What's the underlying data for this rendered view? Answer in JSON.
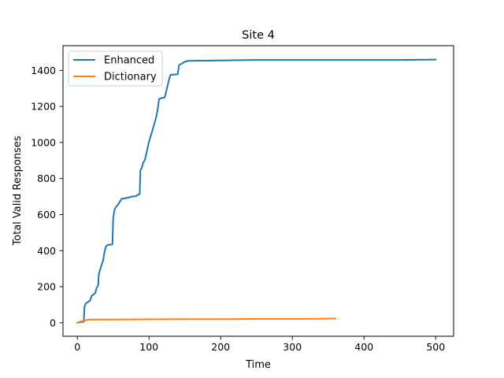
{
  "chart_data": {
    "type": "line",
    "title": "Site 4",
    "xlabel": "Time",
    "ylabel": "Total Valid Responses",
    "xlim": [
      -20,
      525
    ],
    "ylim": [
      -75,
      1537
    ],
    "xticks": [
      0,
      100,
      200,
      300,
      400,
      500
    ],
    "yticks": [
      0,
      200,
      400,
      600,
      800,
      1000,
      1200,
      1400
    ],
    "legend_position": "top-left",
    "grid": false,
    "series": [
      {
        "name": "Enhanced",
        "color": "#1f77b4",
        "points": [
          [
            0,
            0
          ],
          [
            3,
            2
          ],
          [
            6,
            4
          ],
          [
            9,
            5
          ],
          [
            10,
            90
          ],
          [
            12,
            108
          ],
          [
            15,
            115
          ],
          [
            18,
            125
          ],
          [
            20,
            150
          ],
          [
            22,
            155
          ],
          [
            25,
            165
          ],
          [
            27,
            195
          ],
          [
            29,
            205
          ],
          [
            30,
            270
          ],
          [
            33,
            310
          ],
          [
            36,
            345
          ],
          [
            38,
            395
          ],
          [
            40,
            425
          ],
          [
            43,
            433
          ],
          [
            46,
            433
          ],
          [
            49,
            435
          ],
          [
            50,
            580
          ],
          [
            52,
            630
          ],
          [
            55,
            648
          ],
          [
            57,
            655
          ],
          [
            59,
            670
          ],
          [
            62,
            688
          ],
          [
            66,
            690
          ],
          [
            72,
            695
          ],
          [
            76,
            700
          ],
          [
            82,
            702
          ],
          [
            84,
            710
          ],
          [
            87,
            712
          ],
          [
            88,
            845
          ],
          [
            90,
            860
          ],
          [
            92,
            890
          ],
          [
            94,
            900
          ],
          [
            97,
            950
          ],
          [
            100,
            1005
          ],
          [
            105,
            1070
          ],
          [
            110,
            1140
          ],
          [
            112,
            1180
          ],
          [
            114,
            1240
          ],
          [
            116,
            1245
          ],
          [
            122,
            1250
          ],
          [
            125,
            1300
          ],
          [
            128,
            1350
          ],
          [
            130,
            1375
          ],
          [
            135,
            1377
          ],
          [
            140,
            1378
          ],
          [
            142,
            1430
          ],
          [
            146,
            1438
          ],
          [
            150,
            1448
          ],
          [
            155,
            1453
          ],
          [
            200,
            1455
          ],
          [
            250,
            1458
          ],
          [
            350,
            1458
          ],
          [
            450,
            1458
          ],
          [
            500,
            1460
          ]
        ]
      },
      {
        "name": "Dictionary",
        "color": "#ff7f0e",
        "points": [
          [
            0,
            0
          ],
          [
            3,
            5
          ],
          [
            6,
            8
          ],
          [
            9,
            10
          ],
          [
            12,
            14
          ],
          [
            15,
            17
          ],
          [
            20,
            18
          ],
          [
            30,
            18
          ],
          [
            50,
            18
          ],
          [
            100,
            19
          ],
          [
            150,
            20
          ],
          [
            200,
            20
          ],
          [
            250,
            21
          ],
          [
            300,
            21
          ],
          [
            340,
            22
          ],
          [
            360,
            24
          ]
        ]
      }
    ]
  }
}
